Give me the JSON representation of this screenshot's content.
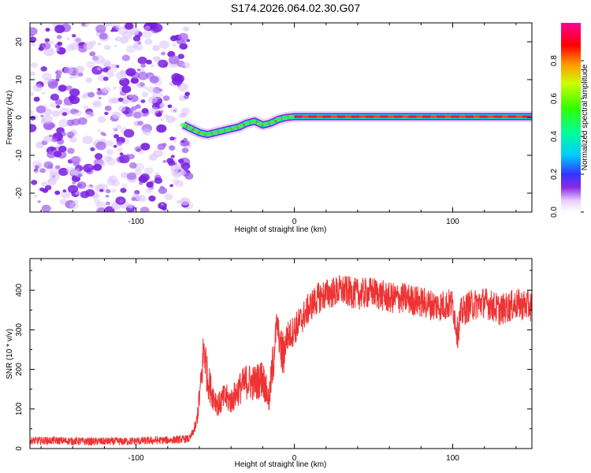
{
  "title": "S174.2026.064.02.30.G07",
  "chart_data": [
    {
      "type": "heatmap",
      "xlabel": "Height of straight line (km)",
      "ylabel": "Frequency (Hz)",
      "xlim": [
        -167,
        150
      ],
      "ylim": [
        -25,
        25
      ],
      "xticks": [
        -100,
        0,
        100
      ],
      "yticks": [
        -20,
        -10,
        0,
        10,
        20
      ],
      "noise_region_x": [
        -167,
        -70
      ],
      "signal_trace": {
        "x": [
          -70,
          -65,
          -60,
          -55,
          -50,
          -45,
          -40,
          -35,
          -30,
          -25,
          -20,
          -15,
          -10,
          -5,
          0,
          10,
          20,
          40,
          60,
          80,
          100,
          120,
          150
        ],
        "freq": [
          -2,
          -3,
          -4,
          -4.5,
          -4,
          -3.5,
          -3,
          -2.5,
          -1.5,
          -1,
          -2,
          -1.5,
          -0.5,
          0,
          0.2,
          0.2,
          0.2,
          0.2,
          0.2,
          0.2,
          0.2,
          0.2,
          0.2
        ]
      },
      "colorbar": {
        "label": "Normalized spectral amplitude",
        "range": [
          0,
          1
        ],
        "ticks": [
          "0.0",
          "0.2",
          "0.4",
          "0.6",
          "0.8"
        ]
      }
    },
    {
      "type": "line",
      "xlabel": "Height of straight line (km)",
      "ylabel": "SNR (10 * v/v)",
      "xlim": [
        -167,
        150
      ],
      "ylim": [
        0,
        480
      ],
      "xticks": [
        -100,
        0,
        100
      ],
      "yticks": [
        0,
        100,
        200,
        300,
        400
      ],
      "color": "#ee3333",
      "series": {
        "name": "SNR",
        "x": [
          -167,
          -150,
          -130,
          -110,
          -90,
          -75,
          -66,
          -62,
          -59,
          -57,
          -55,
          -52,
          -48,
          -44,
          -40,
          -35,
          -30,
          -25,
          -20,
          -16,
          -13,
          -11,
          -9,
          -7,
          -5,
          0,
          5,
          10,
          15,
          20,
          25,
          30,
          40,
          50,
          60,
          70,
          80,
          90,
          100,
          103,
          105,
          110,
          120,
          130,
          140,
          150
        ],
        "y": [
          20,
          20,
          18,
          18,
          20,
          22,
          25,
          60,
          160,
          260,
          180,
          140,
          110,
          130,
          120,
          150,
          170,
          165,
          180,
          120,
          240,
          320,
          260,
          230,
          280,
          300,
          330,
          360,
          380,
          390,
          395,
          400,
          390,
          395,
          380,
          380,
          370,
          360,
          365,
          290,
          340,
          360,
          370,
          350,
          365,
          360
        ]
      }
    }
  ]
}
